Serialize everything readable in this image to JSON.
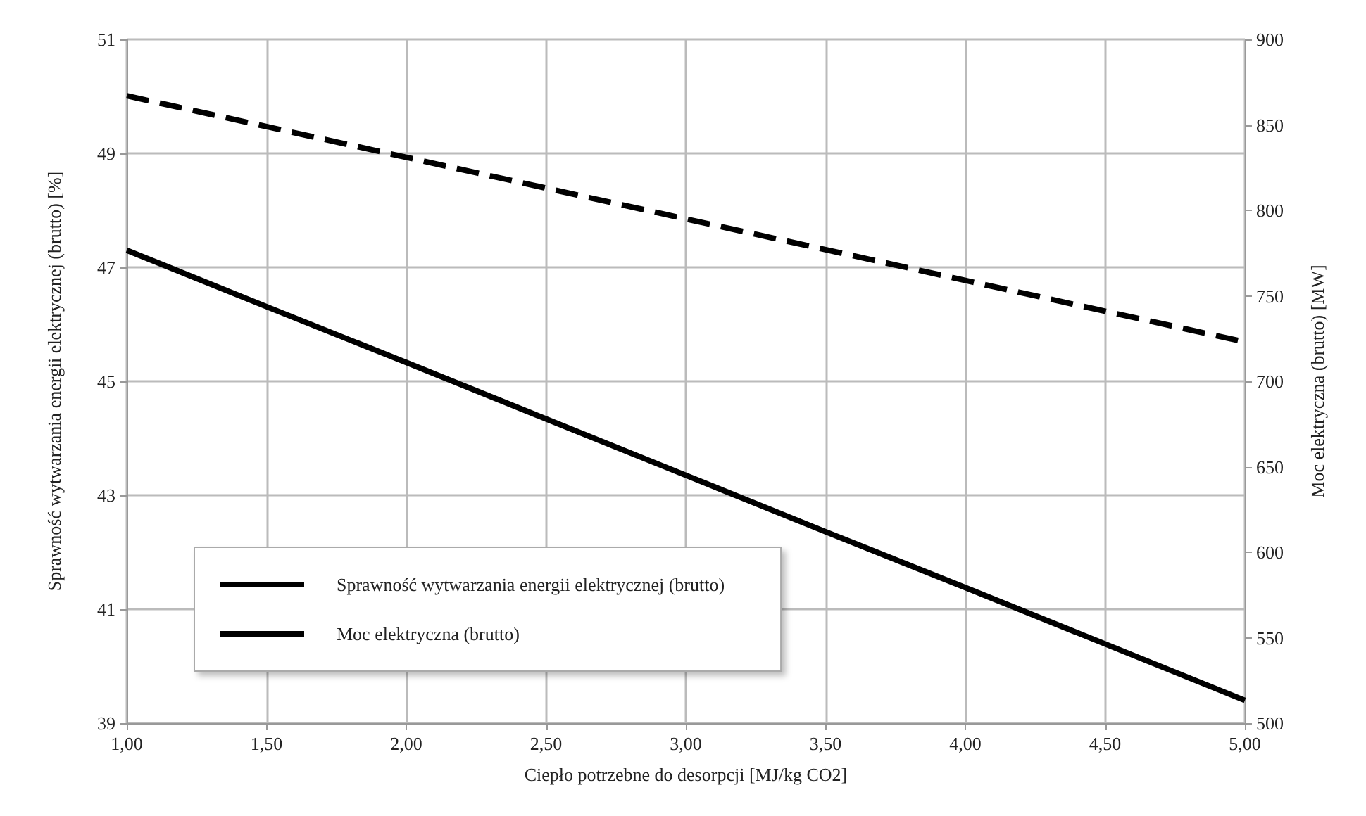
{
  "chart_data": {
    "type": "line",
    "xlabel": "Ciepło potrzebne do desorpcji [MJ/kg CO2]",
    "ylabel": "Sprawność wytwarzania energii elektrycznej (brutto) [%]",
    "y2label": "Moc elektryczna (brutto) [MW]",
    "x": [
      1,
      1.5,
      2,
      2.5,
      3,
      3.5,
      4,
      4.5,
      5
    ],
    "series": [
      {
        "name": "Sprawność wytwarzania energii elektrycznej (brutto)",
        "color": "#000000",
        "line_style": "solid",
        "values": [
          47.3,
          46.31,
          45.33,
          44.34,
          43.35,
          42.36,
          41.38,
          40.39,
          39.4
        ]
      },
      {
        "name": "Moc elektryczna (brutto)",
        "color": "#000000",
        "line_style": "dashed",
        "axis": "y2",
        "values": [
          867,
          849,
          831,
          813,
          795,
          777,
          759,
          741,
          723
        ]
      }
    ],
    "xlim": [
      1,
      5
    ],
    "xticks": [
      {
        "value": 1,
        "label": "1,00"
      },
      {
        "value": 1.5,
        "label": "1,50"
      },
      {
        "value": 2,
        "label": "2,00"
      },
      {
        "value": 2.5,
        "label": "2,50"
      },
      {
        "value": 3,
        "label": "3,00"
      },
      {
        "value": 3.5,
        "label": "3,50"
      },
      {
        "value": 4,
        "label": "4,00"
      },
      {
        "value": 4.5,
        "label": "4,50"
      },
      {
        "value": 5,
        "label": "5,00"
      }
    ],
    "ylim": [
      39,
      51
    ],
    "yticks": [
      39,
      41,
      43,
      45,
      47,
      49,
      51
    ],
    "y2lim": [
      500,
      900
    ],
    "y2ticks": [
      500,
      550,
      600,
      650,
      700,
      750,
      800,
      850,
      900
    ],
    "grid": true,
    "legend": "bottom left",
    "marker": "none"
  }
}
